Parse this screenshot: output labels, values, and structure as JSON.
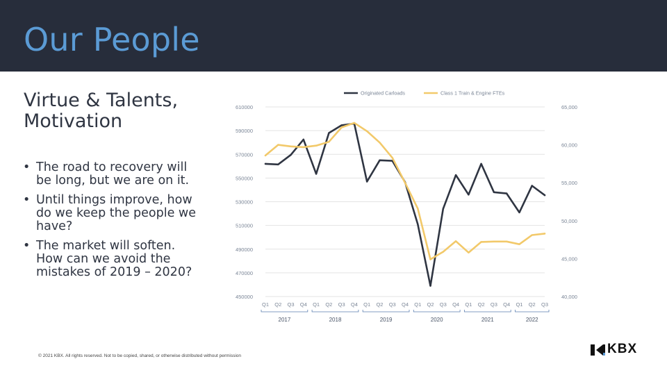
{
  "header": {
    "title": "Our People"
  },
  "content": {
    "subtitle_line1": "Virtue & Talents,",
    "subtitle_line2": "Motivation",
    "bullets": [
      "The road to recovery will be long, but we are on it.",
      "Until things improve, how do we keep the people we have?",
      "The market will soften. How can we avoid the mistakes of 2019 – 2020?"
    ],
    "bullet_glyph": "•"
  },
  "footer": {
    "text": "© 2021 KBX.  All rights reserved.  Not to be copied, shared, or otherwise distributed without permission"
  },
  "logo": {
    "text": "KBX",
    "icon": "kbx-mark-icon"
  },
  "colors": {
    "header_bg": "#272d3b",
    "title": "#5b9bd5",
    "series_carloads": "#2f3542",
    "series_fte": "#f2c96a"
  },
  "chart_data": {
    "type": "line",
    "quarters": [
      "Q1",
      "Q2",
      "Q3",
      "Q4",
      "Q1",
      "Q2",
      "Q3",
      "Q4",
      "Q1",
      "Q2",
      "Q3",
      "Q4",
      "Q1",
      "Q2",
      "Q3",
      "Q4",
      "Q1",
      "Q2",
      "Q3",
      "Q4",
      "Q1",
      "Q2",
      "Q3"
    ],
    "years": [
      {
        "label": "2017",
        "start": 0,
        "end": 3
      },
      {
        "label": "2018",
        "start": 4,
        "end": 7
      },
      {
        "label": "2019",
        "start": 8,
        "end": 11
      },
      {
        "label": "2020",
        "start": 12,
        "end": 15
      },
      {
        "label": "2021",
        "start": 16,
        "end": 19
      },
      {
        "label": "2022",
        "start": 20,
        "end": 22
      }
    ],
    "left_axis": {
      "ylim": [
        450000,
        610000
      ],
      "ticks": [
        "450000",
        "470000",
        "490000",
        "510000",
        "530000",
        "550000",
        "570000",
        "590000",
        "610000"
      ]
    },
    "right_axis": {
      "ylim": [
        40000,
        65000
      ],
      "ticks": [
        "40,000",
        "45,000",
        "50,000",
        "55,000",
        "60,000",
        "65,000"
      ]
    },
    "series": [
      {
        "name": "Originated Carloads",
        "axis": "left",
        "color": "#2f3542",
        "values": [
          562000,
          561500,
          569500,
          582500,
          553500,
          588000,
          594500,
          596000,
          547000,
          565000,
          564500,
          546500,
          511000,
          459000,
          524000,
          552500,
          536000,
          562000,
          538000,
          537000,
          521000,
          543500,
          535500
        ]
      },
      {
        "name": "Class 1 Train & Engine FTEs",
        "axis": "right",
        "color": "#f2c96a",
        "values": [
          58600,
          60000,
          59800,
          59700,
          59900,
          60400,
          62300,
          62900,
          61800,
          60300,
          58300,
          55000,
          51600,
          44900,
          45900,
          47300,
          45800,
          47200,
          47250,
          47250,
          46900,
          48100,
          48300
        ]
      }
    ],
    "legend": "top-center",
    "grid": true
  }
}
